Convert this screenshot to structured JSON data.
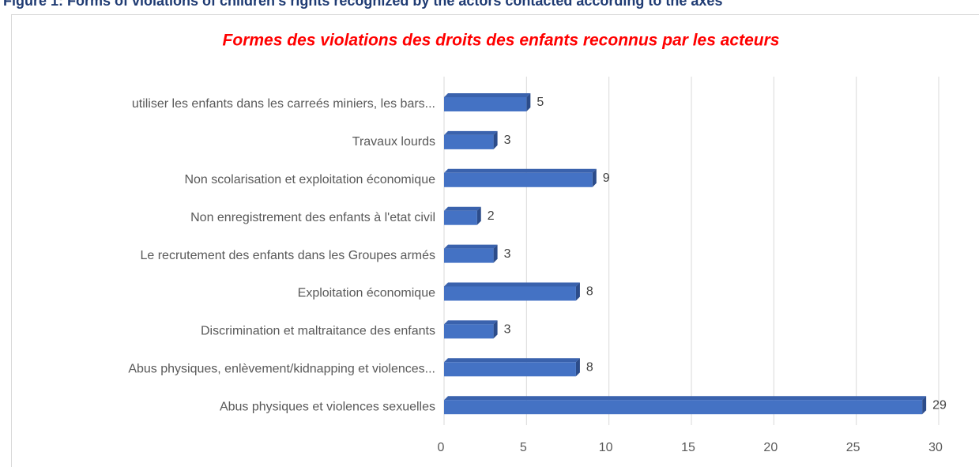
{
  "caption": "Figure 1: Forms of violations of children's rights recognized by the actors contacted according to the axes",
  "chart_data": {
    "type": "barh",
    "title": "Formes des violations des droits des enfants reconnus par les acteurs",
    "categories": [
      "utiliser les enfants dans les carreés miniers, les bars...",
      "Travaux lourds",
      "Non scolarisation et exploitation économique",
      "Non enregistrement des enfants à l'etat civil",
      "Le recrutement des enfants dans les Groupes armés",
      "Exploitation économique",
      "Discrimination et maltraitance des enfants",
      "Abus physiques, enlèvement/kidnapping  et violences...",
      "Abus physiques et violences sexuelles"
    ],
    "values": [
      5,
      3,
      9,
      2,
      3,
      8,
      3,
      8,
      29
    ],
    "color": "#4472c4",
    "xlim": [
      0,
      30
    ],
    "xticks": [
      0,
      5,
      10,
      15,
      20,
      25,
      30
    ],
    "grid": true
  }
}
